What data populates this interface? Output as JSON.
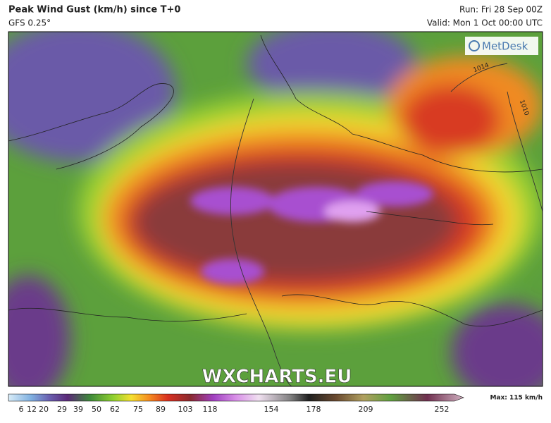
{
  "header": {
    "title": "Peak Wind Gust (km/h) since T+0",
    "subtitle": "GFS 0.25°",
    "run": "Run: Fri 28 Sep 00Z",
    "valid": "Valid: Mon 1 Oct 00:00 UTC"
  },
  "map": {
    "logo": "MetDesk",
    "watermark": "WXCHARTS.EU",
    "isobar_labels": [
      "1014",
      "1010"
    ]
  },
  "legend": {
    "ticks": [
      "6",
      "12",
      "20",
      "29",
      "39",
      "50",
      "62",
      "75",
      "89",
      "103",
      "118",
      "154",
      "178",
      "209",
      "252"
    ],
    "max": "Max: 115 km/h"
  }
}
